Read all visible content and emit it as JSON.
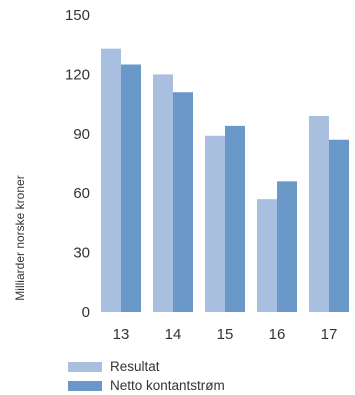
{
  "chart_data": {
    "type": "bar",
    "categories": [
      "13",
      "14",
      "15",
      "16",
      "17"
    ],
    "series": [
      {
        "name": "Resultat",
        "values": [
          133,
          120,
          89,
          57,
          99
        ],
        "color": "#a9bfdf"
      },
      {
        "name": "Netto kontantstrøm",
        "values": [
          125,
          111,
          94,
          66,
          87
        ],
        "color": "#6a98c8"
      }
    ],
    "ylabel": "Milliarder norske kroner",
    "ylim": [
      0,
      150
    ],
    "yticks": [
      0,
      30,
      60,
      90,
      120,
      150
    ],
    "grid": false,
    "legend": "bottom-left"
  }
}
